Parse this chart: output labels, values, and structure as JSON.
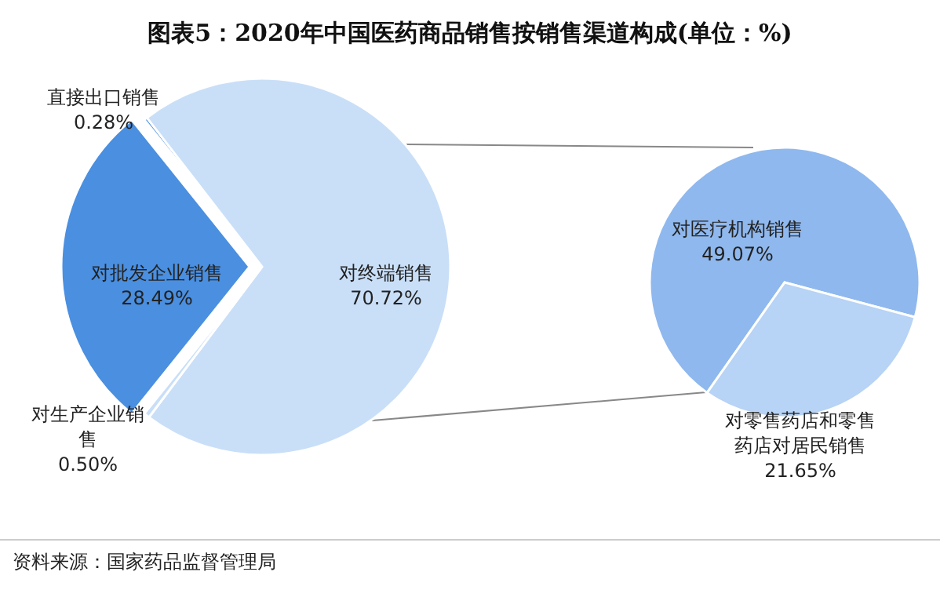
{
  "chart_data": [
    {
      "type": "pie",
      "title": "图表5：2020年中国医药商品销售按销售渠道构成(单位：%)",
      "categories": [
        "直接出口销售",
        "对终端销售",
        "对生产企业销售",
        "对批发企业销售"
      ],
      "values": [
        0.28,
        70.72,
        0.5,
        28.49
      ],
      "value_labels": [
        "0.28%",
        "70.72%",
        "0.50%",
        "28.49%"
      ],
      "colors": [
        "#4a8fe0",
        "#c9dff8",
        "#c9dff8",
        "#4a8fe0"
      ],
      "annotations": [
        "资料来源：国家药品监督管理局"
      ]
    },
    {
      "type": "pie",
      "categories": [
        "对医疗机构销售",
        "对零售药店和零售药店对居民销售"
      ],
      "values": [
        49.07,
        21.65
      ],
      "value_labels": [
        "49.07%",
        "21.65%"
      ],
      "colors": [
        "#8fb8ee",
        "#b7d3f5"
      ]
    }
  ]
}
